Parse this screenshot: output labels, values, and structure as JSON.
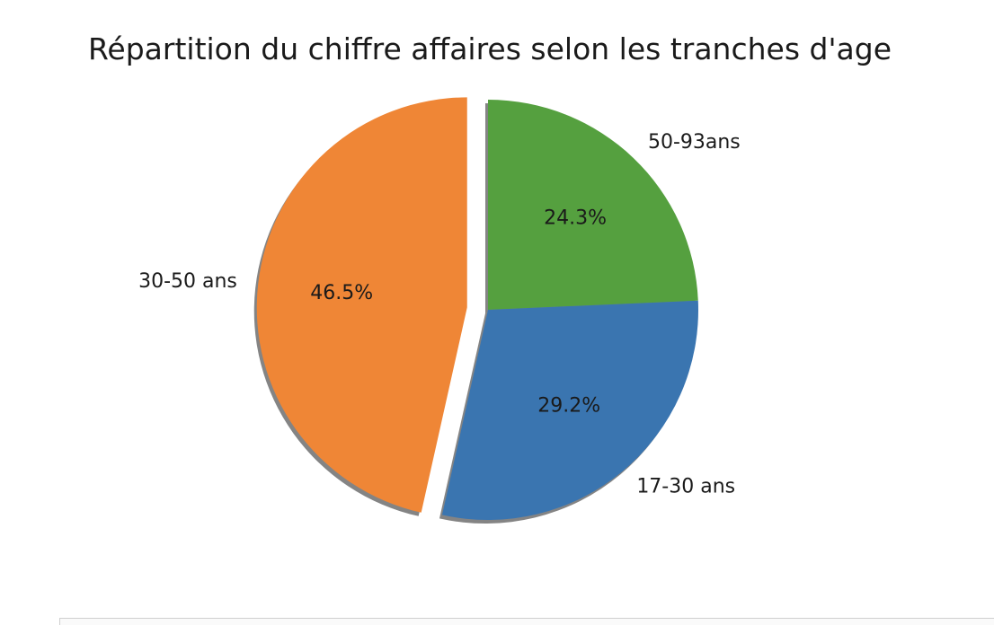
{
  "chart_data": {
    "type": "pie",
    "title": "Répartition du chiffre affaires selon les tranches d'age",
    "slices": [
      {
        "label": "50-93ans",
        "percent_label": "24.3%",
        "value": 24.3,
        "color": "#55a03f",
        "explode": 0
      },
      {
        "label": "17-30 ans",
        "percent_label": "29.2%",
        "value": 29.2,
        "color": "#3a75b0",
        "explode": 0
      },
      {
        "label": "30-50 ans",
        "percent_label": "46.5%",
        "value": 46.5,
        "color": "#ef8636",
        "explode": 0.1
      }
    ],
    "shadow": true,
    "startangle": 90,
    "direction": "clockwise"
  }
}
